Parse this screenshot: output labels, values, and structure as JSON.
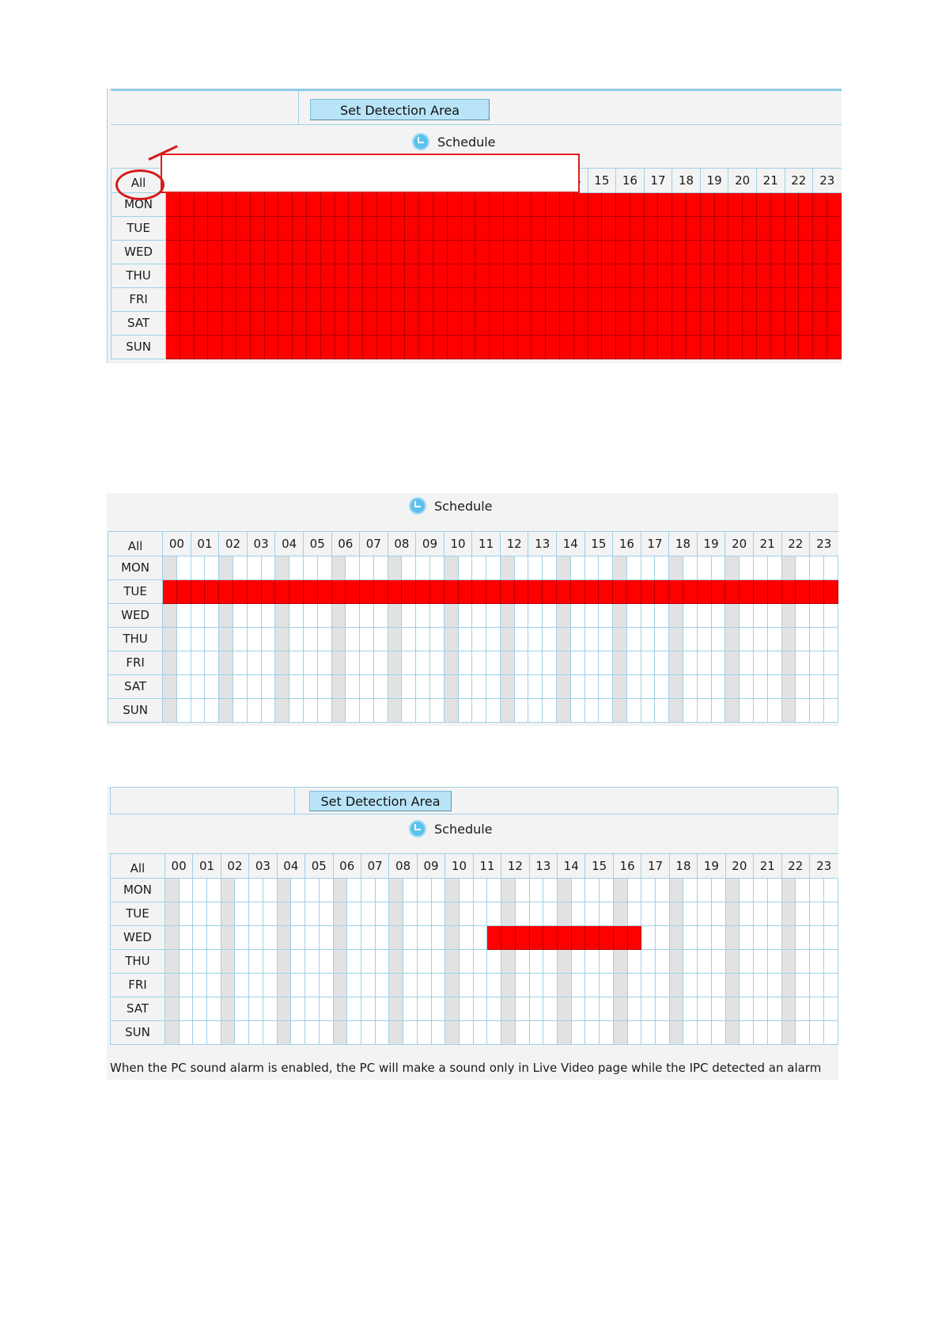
{
  "button_label": "Set Detection Area",
  "schedule_title": "Schedule",
  "all_label": "All",
  "hours": [
    "00",
    "01",
    "02",
    "03",
    "04",
    "05",
    "06",
    "07",
    "08",
    "09",
    "10",
    "11",
    "12",
    "13",
    "14",
    "15",
    "16",
    "17",
    "18",
    "19",
    "20",
    "21",
    "22",
    "23"
  ],
  "days": [
    "MON",
    "TUE",
    "WED",
    "THU",
    "FRI",
    "SAT",
    "SUN"
  ],
  "footnote": "When the PC sound alarm is enabled, the PC will make a sound only in Live Video page while the IPC detected an alarm",
  "colors": {
    "selected": "#ff0000",
    "header_accent": "#9fd0e8",
    "button": "#b9e4f7"
  },
  "schedules": [
    {
      "name": "all-selected",
      "selection": [
        {
          "day": "all",
          "from_slot": 0,
          "to_slot": 48
        }
      ]
    },
    {
      "name": "tuesday-selected",
      "selection": [
        {
          "day": "TUE",
          "from_slot": 0,
          "to_slot": 48
        }
      ]
    },
    {
      "name": "wednesday-11-to-16",
      "selection": [
        {
          "day": "WED",
          "from_slot": 23,
          "to_slot": 34
        }
      ]
    }
  ]
}
